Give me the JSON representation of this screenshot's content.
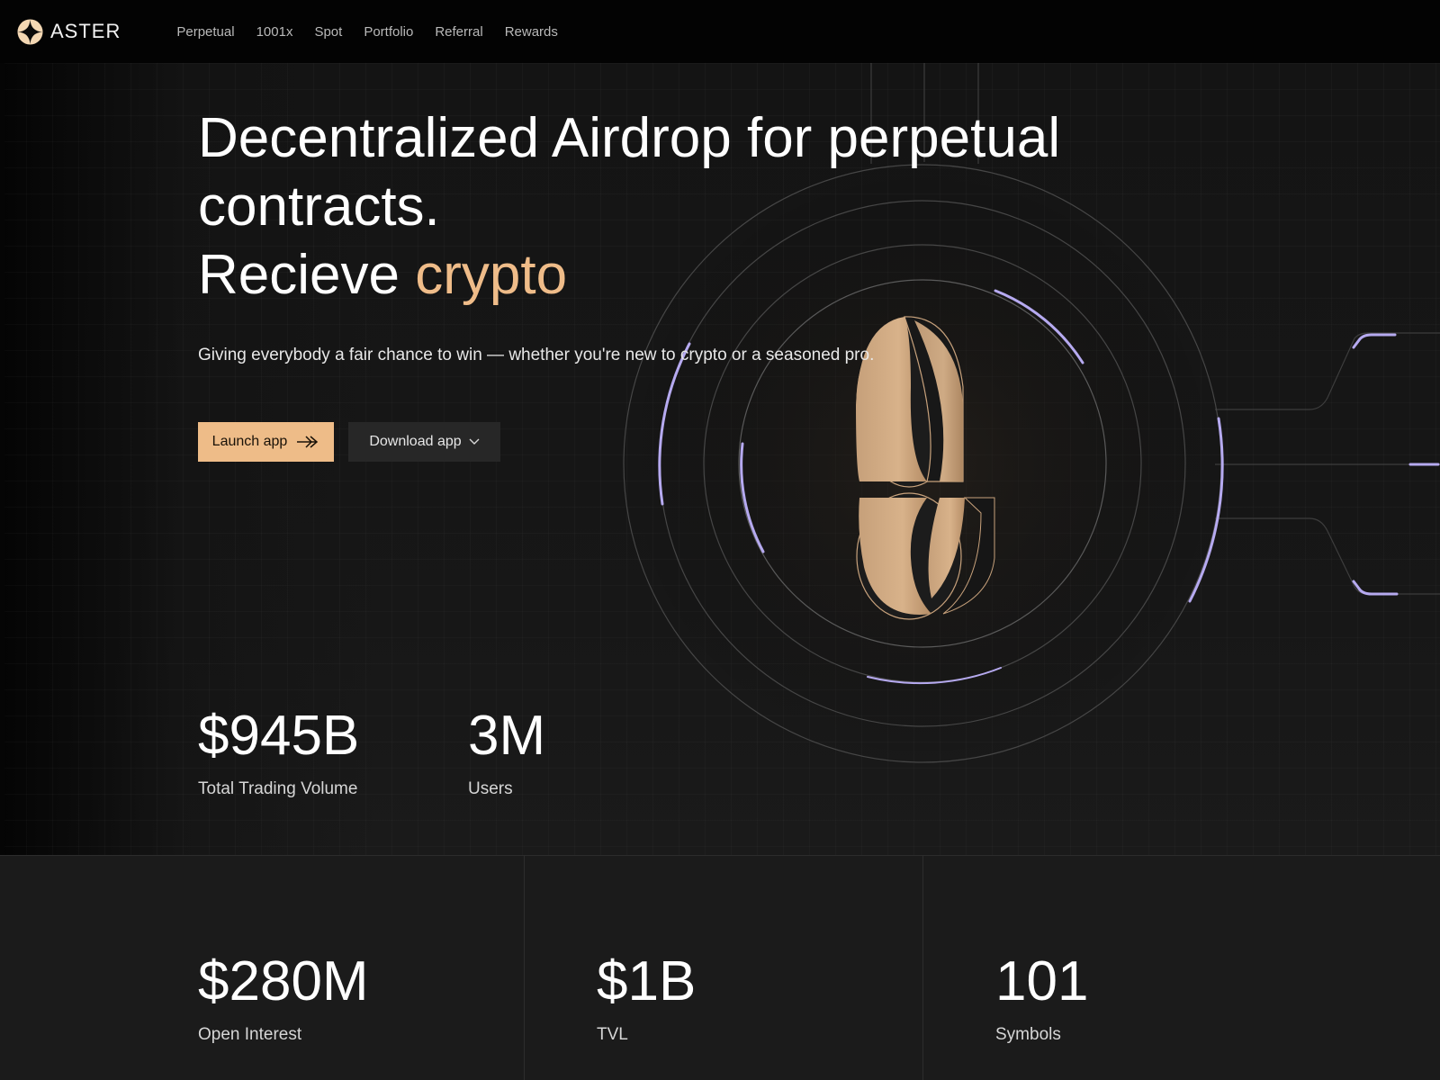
{
  "nav": {
    "brand": "ASTER",
    "links": [
      "Perpetual",
      "1001x",
      "Spot",
      "Portfolio",
      "Referral",
      "Rewards"
    ]
  },
  "hero": {
    "headline_line1": "Decentralized Airdrop for perpetual",
    "headline_line2": "contracts.",
    "headline_line3_prefix": "Recieve ",
    "headline_line3_accent": "crypto",
    "subtitle": "Giving everybody a fair chance to win — whether you're new to crypto or a seasoned pro.",
    "launch_label": "Launch app",
    "download_label": "Download app"
  },
  "stats_top": [
    {
      "value": "$945B",
      "label": "Total Trading Volume"
    },
    {
      "value": "3M",
      "label": "Users"
    }
  ],
  "stats_bottom": [
    {
      "value": "$280M",
      "label": "Open Interest"
    },
    {
      "value": "$1B",
      "label": "TVL"
    },
    {
      "value": "101",
      "label": "Symbols"
    }
  ],
  "colors": {
    "accent": "#eebc88",
    "background": "#141414",
    "ring_highlight": "#b6aaf0"
  },
  "icons": {
    "brand": "aster-logo-icon",
    "launch": "arrow-right-icon",
    "download": "chevron-down-icon",
    "coin": "aster-coin-icon"
  }
}
